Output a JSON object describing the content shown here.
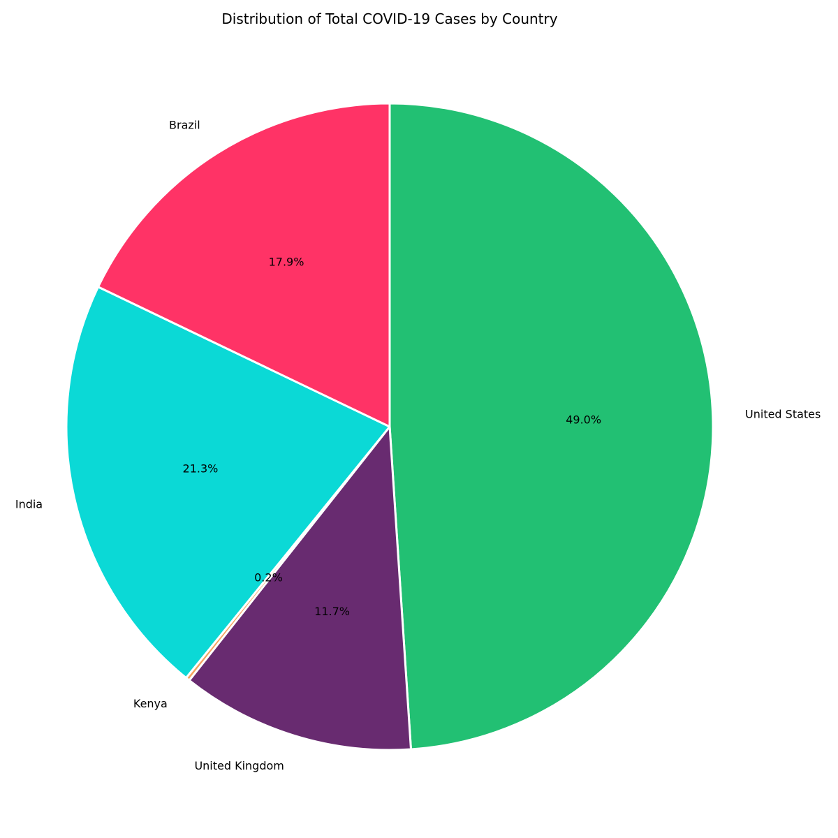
{
  "chart_data": {
    "type": "pie",
    "title": "Distribution of Total COVID-19 Cases by Country",
    "start_angle_deg": 90,
    "direction": "clockwise",
    "slices": [
      {
        "label": "United States",
        "value": 49.0,
        "pct_label": "49.0%",
        "color": "#22c073"
      },
      {
        "label": "United Kingdom",
        "value": 11.7,
        "pct_label": "11.7%",
        "color": "#682b70"
      },
      {
        "label": "Kenya",
        "value": 0.2,
        "pct_label": "0.2%",
        "color": "#f4a460"
      },
      {
        "label": "India",
        "value": 21.3,
        "pct_label": "21.3%",
        "color": "#0bd9d6"
      },
      {
        "label": "Brazil",
        "value": 17.9,
        "pct_label": "17.9%",
        "color": "#ff3366"
      }
    ]
  }
}
